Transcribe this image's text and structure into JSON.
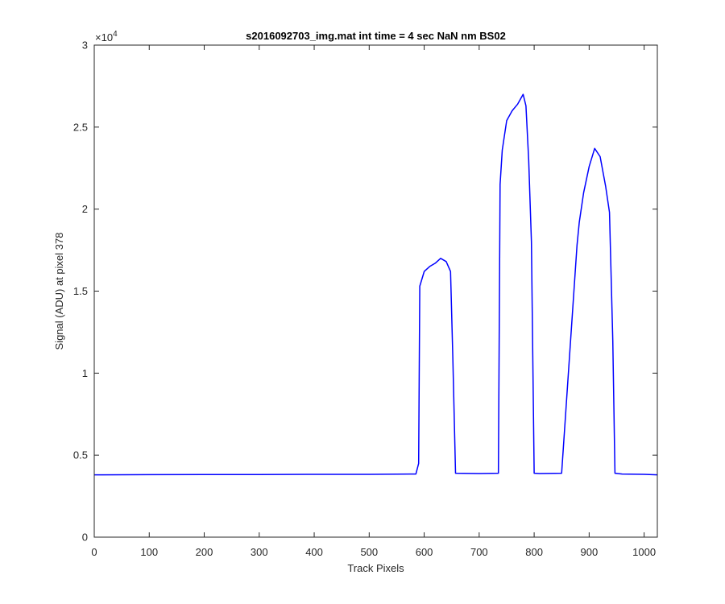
{
  "chart_data": {
    "type": "line",
    "title": "s2016092703_img.mat int time = 4 sec  NaN nm BS02",
    "xlabel": "Track Pixels",
    "ylabel": "Signal (ADU) at pixel 378",
    "xlim": [
      0,
      1024
    ],
    "ylim": [
      0,
      30000
    ],
    "x_ticks": [
      0,
      100,
      200,
      300,
      400,
      500,
      600,
      700,
      800,
      900,
      1000
    ],
    "x_tick_labels": [
      "0",
      "100",
      "200",
      "300",
      "400",
      "500",
      "600",
      "700",
      "800",
      "900",
      "1000"
    ],
    "y_ticks": [
      0,
      5000,
      10000,
      15000,
      20000,
      25000,
      30000
    ],
    "y_tick_labels": [
      "0",
      "0.5",
      "1",
      "1.5",
      "2",
      "2.5",
      "3"
    ],
    "y_exponent_base": "×10",
    "y_exponent_power": "4",
    "grid": false,
    "series": [
      {
        "color": "#0000ff",
        "x": [
          0,
          100,
          200,
          300,
          400,
          500,
          585,
          590,
          592,
          600,
          610,
          620,
          630,
          640,
          648,
          652,
          657,
          700,
          735,
          738,
          742,
          750,
          760,
          770,
          780,
          785,
          790,
          795,
          800,
          810,
          850,
          878,
          882,
          890,
          900,
          910,
          920,
          930,
          937,
          943,
          947,
          960,
          1000,
          1024
        ],
        "y": [
          3800,
          3810,
          3820,
          3820,
          3830,
          3830,
          3850,
          4500,
          15300,
          16200,
          16500,
          16700,
          17000,
          16800,
          16200,
          11000,
          3900,
          3880,
          3900,
          21500,
          23600,
          25400,
          26000,
          26400,
          27000,
          26300,
          23000,
          18000,
          3900,
          3880,
          3900,
          17800,
          19200,
          21000,
          22600,
          23700,
          23200,
          21400,
          19800,
          12000,
          3900,
          3850,
          3830,
          3800
        ]
      }
    ]
  }
}
